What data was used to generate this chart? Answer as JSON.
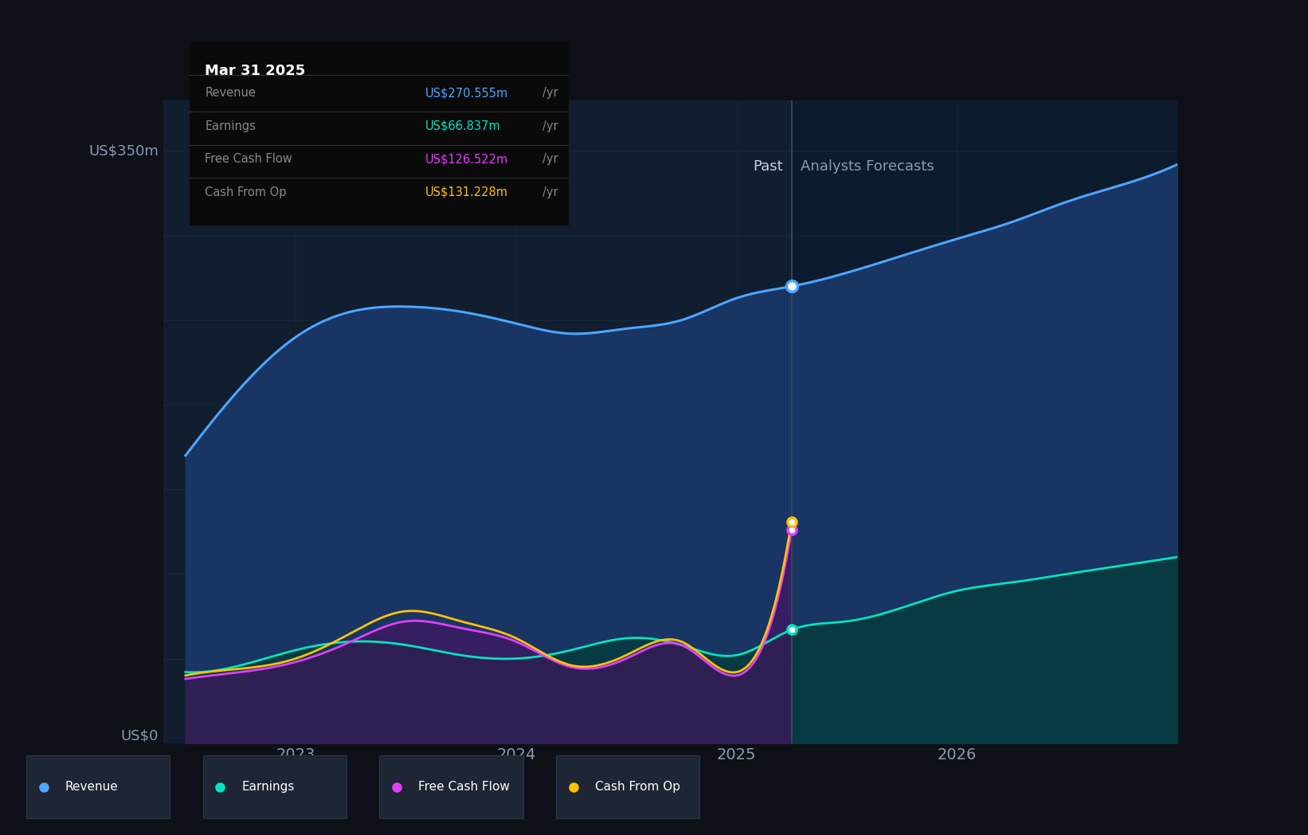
{
  "bg_color": "#0d1117",
  "plot_bg_color": "#0d1b2e",
  "grid_color": "#1e2d3d",
  "title_color": "#c9d1d9",
  "axis_label_color": "#8b9ab0",
  "ylabel_350": "US$350m",
  "ylabel_0": "US$0",
  "divider_x": 2025.25,
  "past_label": "Past",
  "forecast_label": "Analysts Forecasts",
  "tooltip_title": "Mar 31 2025",
  "tooltip_rows": [
    {
      "label": "Revenue",
      "value": "US$270.555m /yr",
      "color": "#4da6ff"
    },
    {
      "label": "Earnings",
      "value": "US$66.837m /yr",
      "color": "#00e5c0"
    },
    {
      "label": "Free Cash Flow",
      "value": "US$126.522m /yr",
      "color": "#e040fb"
    },
    {
      "label": "Cash From Op",
      "value": "US$131.228m /yr",
      "color": "#ffc107"
    }
  ],
  "legend_items": [
    {
      "label": "Revenue",
      "color": "#4da6ff"
    },
    {
      "label": "Earnings",
      "color": "#00e5c0"
    },
    {
      "label": "Free Cash Flow",
      "color": "#e040fb"
    },
    {
      "label": "Cash From Op",
      "color": "#ffc107"
    }
  ],
  "revenue_color": "#4da6ff",
  "revenue_fill": "#1a3a6e",
  "earnings_color": "#00e5c0",
  "earnings_fill": "#003d35",
  "fcf_color": "#e040fb",
  "fcf_fill": "#4a1060",
  "cashop_color": "#ffc107",
  "cashop_fill": "#4a3500",
  "x_ticks": [
    2023,
    2024,
    2025,
    2026
  ],
  "ylim": [
    0,
    380
  ],
  "xlim": [
    2022.4,
    2027.0
  ],
  "revenue": {
    "x": [
      2022.5,
      2022.75,
      2023.0,
      2023.25,
      2023.5,
      2023.75,
      2024.0,
      2024.25,
      2024.5,
      2024.75,
      2025.0,
      2025.25,
      2025.5,
      2025.75,
      2026.0,
      2026.25,
      2026.5,
      2026.75,
      2027.0
    ],
    "y": [
      170,
      210,
      240,
      255,
      258,
      255,
      248,
      242,
      245,
      250,
      263,
      270,
      278,
      288,
      298,
      308,
      320,
      330,
      342
    ]
  },
  "earnings": {
    "x": [
      2022.5,
      2022.75,
      2023.0,
      2023.25,
      2023.5,
      2023.75,
      2024.0,
      2024.25,
      2024.5,
      2024.75,
      2025.0,
      2025.25,
      2025.5,
      2025.75,
      2026.0,
      2026.25,
      2026.5,
      2026.75,
      2027.0
    ],
    "y": [
      42,
      46,
      55,
      60,
      58,
      52,
      50,
      55,
      62,
      58,
      52,
      67,
      72,
      80,
      90,
      95,
      100,
      105,
      110
    ]
  },
  "fcf": {
    "x": [
      2022.5,
      2022.75,
      2023.0,
      2023.25,
      2023.5,
      2023.75,
      2024.0,
      2024.25,
      2024.5,
      2024.75,
      2025.0,
      2025.25
    ],
    "y": [
      38,
      42,
      48,
      60,
      72,
      68,
      60,
      45,
      50,
      58,
      40,
      126
    ]
  },
  "cashop": {
    "x": [
      2022.5,
      2022.75,
      2023.0,
      2023.25,
      2023.5,
      2023.75,
      2024.0,
      2024.25,
      2024.5,
      2024.75,
      2025.0,
      2025.25
    ],
    "y": [
      40,
      44,
      50,
      65,
      78,
      72,
      62,
      46,
      52,
      60,
      42,
      131
    ]
  }
}
